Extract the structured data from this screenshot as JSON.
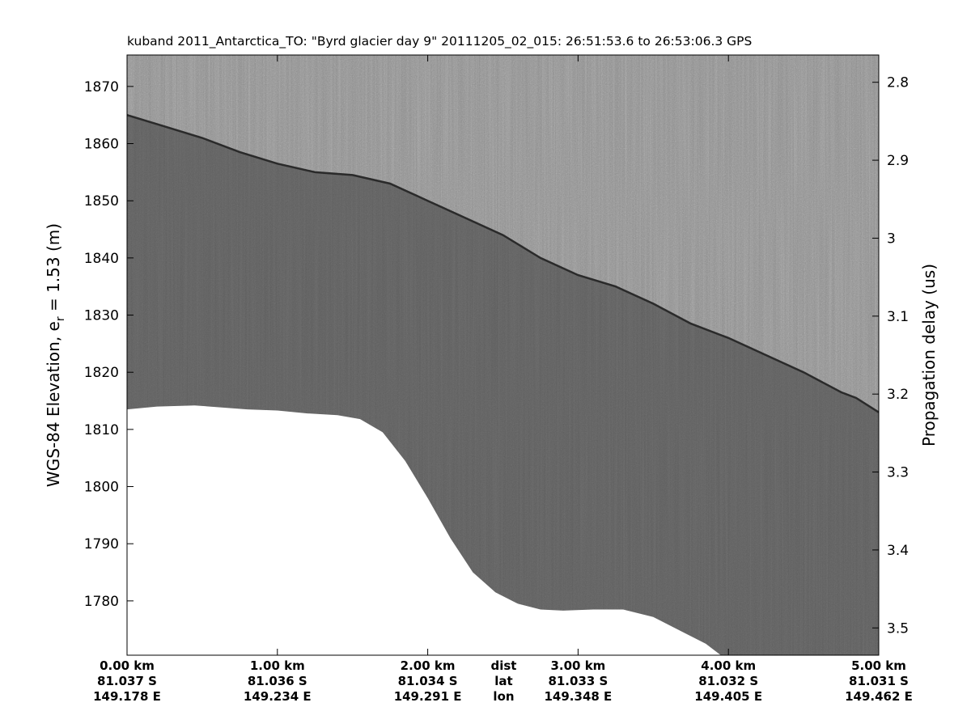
{
  "chart_data": {
    "type": "heatmap",
    "title": "kuband 2011_Antarctica_TO: \"Byrd glacier day 9\"  20111205_02_015: 26:51:53.6 to 26:53:06.3 GPS",
    "ylabel_left": {
      "main": "WGS-84 Elevation, e",
      "sub": "r",
      "rest": " = 1.53 (m)"
    },
    "ylabel_right": "Propagation delay (us)",
    "xlim": [
      0,
      5
    ],
    "ylim": [
      1770.5,
      1875.5
    ],
    "y2lim": [
      2.765,
      3.535
    ],
    "yticks": [
      1780,
      1790,
      1800,
      1810,
      1820,
      1830,
      1840,
      1850,
      1860,
      1870
    ],
    "y2ticks": [
      2.8,
      2.9,
      3,
      3.1,
      3.2,
      3.3,
      3.4,
      3.5
    ],
    "xticks": [
      {
        "x": 0,
        "dist": "0.00 km",
        "lat": "81.037 S",
        "lon": "149.178 E"
      },
      {
        "x": 1,
        "dist": "1.00 km",
        "lat": "81.036 S",
        "lon": "149.234 E"
      },
      {
        "x": 2,
        "dist": "2.00 km",
        "lat": "81.034 S",
        "lon": "149.291 E"
      },
      {
        "x": 3,
        "dist": "3.00 km",
        "lat": "81.033 S",
        "lon": "149.348 E"
      },
      {
        "x": 4,
        "dist": "4.00 km",
        "lat": "81.032 S",
        "lon": "149.405 E"
      },
      {
        "x": 5,
        "dist": "5.00 km",
        "lat": "81.031 S",
        "lon": "149.462 E"
      }
    ],
    "row_labels": {
      "x": 2.5,
      "dist": "dist",
      "lat": "lat",
      "lon": "lon"
    },
    "surface_elevation": {
      "x": [
        0,
        0.25,
        0.5,
        0.75,
        1.0,
        1.25,
        1.5,
        1.75,
        2.0,
        2.25,
        2.5,
        2.75,
        3.0,
        3.25,
        3.5,
        3.75,
        4.0,
        4.25,
        4.5,
        4.75,
        4.85,
        5.0
      ],
      "y": [
        1865,
        1863,
        1861,
        1858.5,
        1856.5,
        1855,
        1854.5,
        1853,
        1850,
        1847,
        1844,
        1840,
        1837,
        1835,
        1832,
        1828.5,
        1826,
        1823,
        1820,
        1816.5,
        1815.5,
        1813
      ]
    },
    "data_bottom_elevation": {
      "x": [
        0,
        0.2,
        0.45,
        0.8,
        1.0,
        1.2,
        1.4,
        1.55,
        1.7,
        1.85,
        2.0,
        2.15,
        2.3,
        2.45,
        2.6,
        2.75,
        2.9,
        3.1,
        3.3,
        3.5,
        3.7,
        3.85,
        3.95
      ],
      "y": [
        1813.5,
        1814,
        1814.2,
        1813.5,
        1813.3,
        1812.8,
        1812.5,
        1811.8,
        1809.5,
        1804.5,
        1798,
        1791,
        1785,
        1781.5,
        1779.5,
        1778.5,
        1778.3,
        1778.5,
        1778.5,
        1777.2,
        1774.5,
        1772.5,
        1770.5
      ]
    },
    "colormap": "gray"
  }
}
